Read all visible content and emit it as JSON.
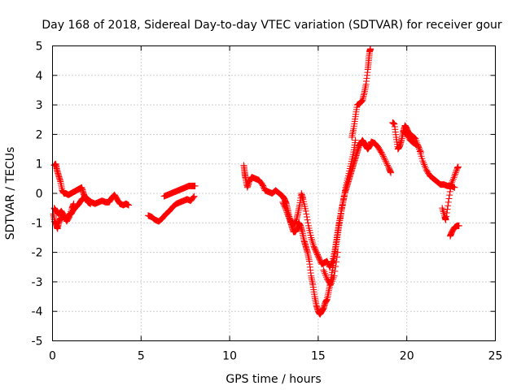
{
  "chart_data": {
    "type": "scatter",
    "title": "Day 168 of 2018, Sidereal Day-to-day VTEC variation (SDTVAR) for receiver gour",
    "xlabel": "GPS time / hours",
    "ylabel": "SDTVAR / TECUs",
    "xlim": [
      0,
      25
    ],
    "ylim": [
      -5,
      5
    ],
    "xticks": [
      0,
      5,
      10,
      15,
      20,
      25
    ],
    "yticks": [
      -5,
      -4,
      -3,
      -2,
      -1,
      0,
      1,
      2,
      3,
      4,
      5
    ],
    "xtick_labels": [
      "0",
      "5",
      "10",
      "15",
      "20",
      "25"
    ],
    "ytick_labels": [
      "-5",
      "-4",
      "-3",
      "-2",
      "-1",
      "0",
      "1",
      "2",
      "3",
      "4",
      "5"
    ],
    "grid": true,
    "marker": "+",
    "color": "#ff0000",
    "series": [
      {
        "segments": [
          [
            [
              0.05,
              -0.7
            ],
            [
              0.12,
              -0.95
            ],
            [
              0.2,
              -1.05
            ],
            [
              0.28,
              -1.2
            ],
            [
              0.35,
              -1.0
            ],
            [
              0.45,
              -0.85
            ],
            [
              0.6,
              -0.8
            ],
            [
              0.75,
              -0.85
            ],
            [
              0.9,
              -0.75
            ],
            [
              1.05,
              -0.7
            ],
            [
              1.2,
              -0.55
            ],
            [
              1.35,
              -0.45
            ],
            [
              1.5,
              -0.35
            ],
            [
              1.65,
              -0.2
            ],
            [
              1.8,
              -0.15
            ],
            [
              2.0,
              -0.2
            ],
            [
              2.2,
              -0.3
            ],
            [
              2.4,
              -0.35
            ],
            [
              2.6,
              -0.3
            ],
            [
              2.8,
              -0.25
            ],
            [
              3.0,
              -0.3
            ],
            [
              3.2,
              -0.3
            ],
            [
              3.35,
              -0.15
            ],
            [
              3.5,
              -0.05
            ],
            [
              3.65,
              -0.2
            ],
            [
              3.8,
              -0.35
            ],
            [
              4.0,
              -0.4
            ],
            [
              4.15,
              -0.35
            ],
            [
              4.3,
              -0.4
            ]
          ],
          [
            [
              0.1,
              0.95
            ],
            [
              0.18,
              1.0
            ],
            [
              0.25,
              0.8
            ],
            [
              0.35,
              0.6
            ],
            [
              0.45,
              0.4
            ],
            [
              0.55,
              0.1
            ],
            [
              0.65,
              0.0
            ],
            [
              0.75,
              0.0
            ],
            [
              0.9,
              -0.05
            ],
            [
              1.05,
              0.0
            ],
            [
              1.2,
              0.05
            ],
            [
              1.35,
              0.1
            ],
            [
              1.5,
              0.15
            ],
            [
              1.65,
              0.2
            ],
            [
              1.75,
              0.0
            ],
            [
              1.85,
              -0.15
            ],
            [
              2.0,
              -0.3
            ],
            [
              2.15,
              -0.35
            ]
          ],
          [
            [
              0.1,
              -0.5
            ],
            [
              0.2,
              -0.6
            ],
            [
              0.35,
              -0.7
            ],
            [
              0.5,
              -0.6
            ],
            [
              0.65,
              -0.75
            ],
            [
              0.8,
              -0.95
            ],
            [
              0.95,
              -0.8
            ],
            [
              1.1,
              -0.5
            ],
            [
              1.2,
              -0.35
            ]
          ],
          [
            [
              5.4,
              -0.75
            ],
            [
              5.6,
              -0.8
            ],
            [
              5.8,
              -0.9
            ],
            [
              6.0,
              -0.95
            ],
            [
              6.2,
              -0.85
            ],
            [
              6.4,
              -0.7
            ],
            [
              6.6,
              -0.6
            ],
            [
              6.8,
              -0.45
            ],
            [
              7.0,
              -0.35
            ],
            [
              7.2,
              -0.3
            ],
            [
              7.4,
              -0.25
            ],
            [
              7.6,
              -0.2
            ],
            [
              7.8,
              -0.25
            ],
            [
              8.0,
              -0.1
            ]
          ],
          [
            [
              6.3,
              -0.1
            ],
            [
              6.5,
              -0.05
            ],
            [
              6.7,
              0.0
            ],
            [
              6.9,
              0.05
            ],
            [
              7.1,
              0.1
            ],
            [
              7.3,
              0.15
            ],
            [
              7.5,
              0.2
            ],
            [
              7.7,
              0.25
            ],
            [
              7.9,
              0.25
            ],
            [
              8.05,
              0.25
            ]
          ],
          [
            [
              10.8,
              0.95
            ],
            [
              10.85,
              0.7
            ],
            [
              10.9,
              0.5
            ],
            [
              11.0,
              0.2
            ],
            [
              11.1,
              0.4
            ],
            [
              11.25,
              0.55
            ],
            [
              11.45,
              0.5
            ],
            [
              11.65,
              0.45
            ],
            [
              11.85,
              0.3
            ],
            [
              12.0,
              0.1
            ],
            [
              12.2,
              0.05
            ],
            [
              12.4,
              0.0
            ],
            [
              12.6,
              0.1
            ],
            [
              12.8,
              0.0
            ],
            [
              13.0,
              -0.1
            ],
            [
              13.1,
              -0.2
            ],
            [
              13.2,
              -0.35
            ],
            [
              13.3,
              -0.6
            ],
            [
              13.4,
              -0.9
            ],
            [
              13.5,
              -1.1
            ],
            [
              13.6,
              -1.3
            ],
            [
              13.7,
              -1.3
            ],
            [
              13.8,
              -1.2
            ],
            [
              13.9,
              -1.0
            ],
            [
              14.0,
              -1.1
            ],
            [
              14.1,
              -1.3
            ],
            [
              14.2,
              -1.6
            ],
            [
              14.3,
              -1.8
            ],
            [
              14.4,
              -2.0
            ],
            [
              14.5,
              -2.3
            ],
            [
              14.6,
              -2.8
            ],
            [
              14.7,
              -3.1
            ],
            [
              14.8,
              -3.5
            ],
            [
              14.9,
              -3.8
            ],
            [
              15.0,
              -4.0
            ],
            [
              15.1,
              -4.1
            ],
            [
              15.2,
              -4.0
            ],
            [
              15.3,
              -3.9
            ],
            [
              15.4,
              -3.7
            ],
            [
              15.5,
              -3.6
            ],
            [
              15.6,
              -3.3
            ],
            [
              15.7,
              -3.0
            ],
            [
              15.8,
              -2.6
            ],
            [
              15.9,
              -2.2
            ],
            [
              16.0,
              -1.8
            ],
            [
              16.1,
              -1.4
            ],
            [
              16.2,
              -1.0
            ],
            [
              16.3,
              -0.6
            ],
            [
              16.4,
              -0.3
            ],
            [
              16.5,
              0.0
            ],
            [
              16.6,
              0.2
            ],
            [
              16.7,
              0.4
            ],
            [
              16.8,
              0.6
            ],
            [
              16.9,
              0.8
            ],
            [
              17.0,
              1.0
            ],
            [
              17.1,
              1.2
            ],
            [
              17.2,
              1.4
            ],
            [
              17.3,
              1.6
            ],
            [
              17.4,
              1.7
            ],
            [
              17.5,
              1.8
            ],
            [
              17.6,
              1.7
            ],
            [
              17.7,
              1.6
            ],
            [
              17.8,
              1.5
            ],
            [
              17.9,
              1.6
            ],
            [
              18.0,
              1.75
            ],
            [
              18.2,
              1.7
            ],
            [
              18.4,
              1.55
            ],
            [
              18.6,
              1.35
            ],
            [
              18.8,
              1.1
            ],
            [
              19.0,
              0.85
            ],
            [
              19.1,
              0.7
            ]
          ],
          [
            [
              13.0,
              -0.3
            ],
            [
              13.15,
              -0.5
            ],
            [
              13.3,
              -0.75
            ],
            [
              13.45,
              -0.95
            ],
            [
              13.6,
              -1.05
            ],
            [
              13.75,
              -0.95
            ],
            [
              13.85,
              -0.7
            ],
            [
              13.95,
              -0.4
            ],
            [
              14.05,
              0.0
            ],
            [
              14.15,
              -0.2
            ],
            [
              14.3,
              -0.6
            ],
            [
              14.45,
              -1.1
            ],
            [
              14.6,
              -1.5
            ],
            [
              14.75,
              -1.8
            ],
            [
              14.9,
              -2.0
            ],
            [
              15.05,
              -2.2
            ],
            [
              15.2,
              -2.4
            ],
            [
              15.35,
              -2.35
            ],
            [
              15.5,
              -2.3
            ],
            [
              15.65,
              -2.5
            ],
            [
              15.8,
              -2.3
            ],
            [
              15.95,
              -1.9
            ],
            [
              16.05,
              -1.5
            ],
            [
              16.15,
              -1.1
            ],
            [
              16.25,
              -0.8
            ],
            [
              16.4,
              -0.3
            ],
            [
              16.55,
              0.2
            ],
            [
              16.7,
              0.6
            ],
            [
              16.85,
              1.0
            ],
            [
              17.0,
              1.4
            ],
            [
              17.1,
              1.8
            ]
          ],
          [
            [
              15.3,
              -2.6
            ],
            [
              15.5,
              -2.9
            ],
            [
              15.7,
              -3.1
            ],
            [
              15.9,
              -2.8
            ],
            [
              16.1,
              -2.0
            ]
          ],
          [
            [
              16.9,
              1.9
            ],
            [
              17.0,
              2.2
            ],
            [
              17.1,
              2.6
            ],
            [
              17.2,
              3.0
            ],
            [
              17.35,
              3.05
            ],
            [
              17.5,
              3.15
            ],
            [
              17.6,
              3.4
            ],
            [
              17.7,
              3.7
            ],
            [
              17.8,
              4.2
            ],
            [
              17.85,
              4.5
            ],
            [
              17.9,
              4.8
            ],
            [
              17.95,
              4.9
            ]
          ],
          [
            [
              19.2,
              2.4
            ],
            [
              19.3,
              2.35
            ],
            [
              19.4,
              1.9
            ],
            [
              19.5,
              1.5
            ],
            [
              19.6,
              1.6
            ],
            [
              19.7,
              1.8
            ],
            [
              19.8,
              2.1
            ],
            [
              19.9,
              2.3
            ],
            [
              20.0,
              2.2
            ],
            [
              20.1,
              2.05
            ],
            [
              20.3,
              1.95
            ],
            [
              20.5,
              1.85
            ],
            [
              20.7,
              1.5
            ],
            [
              20.9,
              1.1
            ],
            [
              21.1,
              0.8
            ],
            [
              21.3,
              0.6
            ],
            [
              21.5,
              0.5
            ],
            [
              21.7,
              0.4
            ],
            [
              21.9,
              0.3
            ],
            [
              22.1,
              0.3
            ],
            [
              22.3,
              0.25
            ],
            [
              22.5,
              0.25
            ],
            [
              22.7,
              0.2
            ]
          ],
          [
            [
              19.8,
              2.1
            ],
            [
              20.0,
              2.0
            ],
            [
              20.2,
              1.8
            ],
            [
              20.4,
              1.7
            ],
            [
              20.6,
              1.65
            ],
            [
              20.8,
              1.4
            ]
          ],
          [
            [
              22.0,
              -0.5
            ],
            [
              22.15,
              -0.8
            ],
            [
              22.2,
              -0.9
            ],
            [
              22.35,
              -0.3
            ],
            [
              22.5,
              0.3
            ],
            [
              22.7,
              0.6
            ],
            [
              22.85,
              0.85
            ],
            [
              22.9,
              0.9
            ]
          ],
          [
            [
              22.45,
              -1.45
            ],
            [
              22.55,
              -1.3
            ],
            [
              22.7,
              -1.15
            ],
            [
              22.85,
              -1.1
            ],
            [
              22.95,
              -1.1
            ]
          ]
        ]
      }
    ]
  }
}
